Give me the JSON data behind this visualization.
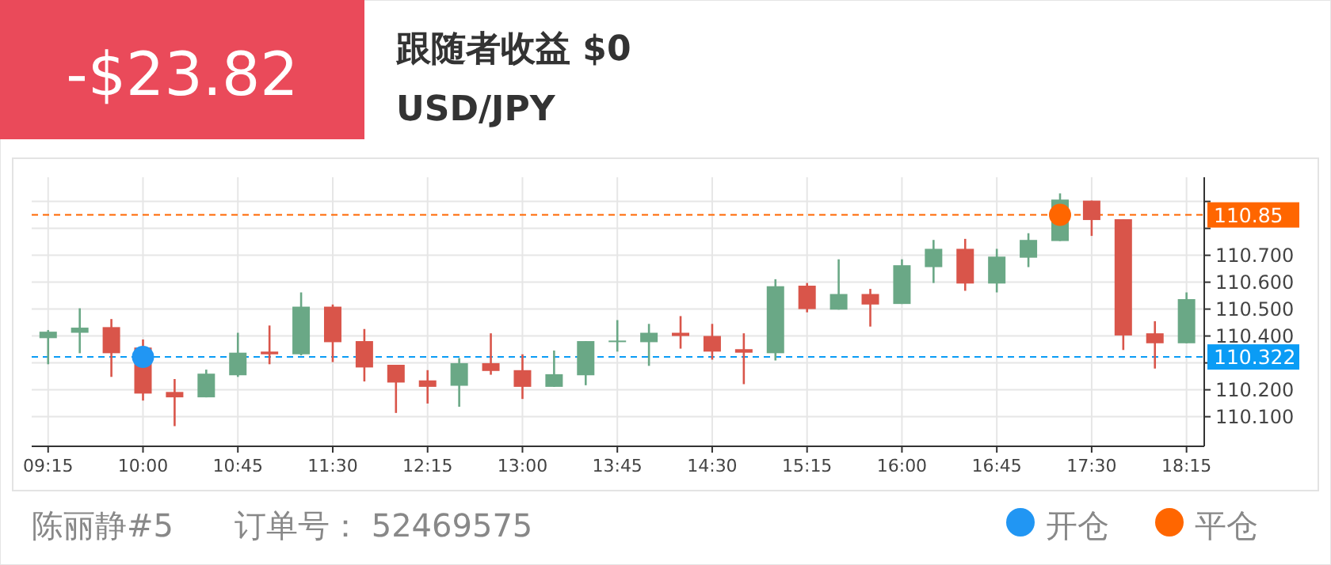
{
  "chart_data": {
    "type": "candlestick",
    "title": "USD/JPY",
    "annotations": [
      "-$23.82",
      "跟随者收益 $0",
      "陈丽静#5",
      "订单号： 52469575"
    ],
    "x": [
      9.25,
      9.5,
      9.75,
      10,
      10.25,
      10.5,
      10.75,
      11,
      11.25,
      11.5,
      11.75,
      12,
      12.25,
      12.5,
      12.75,
      13,
      13.25,
      13.5,
      13.75,
      14,
      14.25,
      14.5,
      14.75,
      15,
      15.25,
      15.5,
      15.75,
      16,
      16.25,
      16.5,
      16.75,
      17,
      17.25,
      17.5,
      17.75,
      18,
      18.25
    ],
    "ohlc": [
      [
        110.392,
        110.422,
        110.295,
        110.416
      ],
      [
        110.412,
        110.503,
        110.336,
        110.431
      ],
      [
        110.433,
        110.463,
        110.248,
        110.336
      ],
      [
        110.357,
        110.387,
        110.16,
        110.186
      ],
      [
        110.192,
        110.24,
        110.065,
        110.172
      ],
      [
        110.172,
        110.275,
        110.172,
        110.26
      ],
      [
        110.254,
        110.412,
        110.248,
        110.338
      ],
      [
        110.342,
        110.439,
        110.295,
        110.332
      ],
      [
        110.332,
        110.562,
        110.328,
        110.509
      ],
      [
        110.509,
        110.517,
        110.303,
        110.377
      ],
      [
        110.381,
        110.426,
        110.231,
        110.283
      ],
      [
        110.293,
        110.293,
        110.114,
        110.227
      ],
      [
        110.235,
        110.273,
        110.149,
        110.211
      ],
      [
        110.215,
        110.318,
        110.137,
        110.299
      ],
      [
        110.299,
        110.41,
        110.256,
        110.27
      ],
      [
        110.273,
        110.332,
        110.166,
        110.211
      ],
      [
        110.211,
        110.346,
        110.211,
        110.258
      ],
      [
        110.254,
        110.381,
        110.217,
        110.381
      ],
      [
        110.379,
        110.459,
        110.342,
        110.383
      ],
      [
        110.377,
        110.445,
        110.289,
        110.412
      ],
      [
        110.412,
        110.474,
        110.353,
        110.4
      ],
      [
        110.4,
        110.445,
        110.312,
        110.342
      ],
      [
        110.351,
        110.41,
        110.221,
        110.338
      ],
      [
        110.336,
        110.611,
        110.309,
        110.585
      ],
      [
        110.587,
        110.597,
        110.488,
        110.5
      ],
      [
        110.498,
        110.685,
        110.498,
        110.556
      ],
      [
        110.556,
        110.575,
        110.435,
        110.517
      ],
      [
        110.519,
        110.685,
        110.519,
        110.663
      ],
      [
        110.656,
        110.757,
        110.597,
        110.724
      ],
      [
        110.724,
        110.761,
        110.568,
        110.595
      ],
      [
        110.595,
        110.724,
        110.562,
        110.695
      ],
      [
        110.691,
        110.782,
        110.656,
        110.757
      ],
      [
        110.753,
        110.93,
        110.753,
        110.907
      ],
      [
        110.903,
        110.903,
        110.772,
        110.831
      ],
      [
        110.834,
        110.834,
        110.348,
        110.402
      ],
      [
        110.41,
        110.455,
        110.279,
        110.373
      ],
      [
        110.373,
        110.562,
        110.373,
        110.537
      ]
    ],
    "colors": [
      "#6aa886",
      "#6aa886",
      "#d9554a",
      "#d9554a",
      "#d9554a",
      "#6aa886",
      "#6aa886",
      "#d9554a",
      "#6aa886",
      "#d9554a",
      "#d9554a",
      "#d9554a",
      "#d9554a",
      "#6aa886",
      "#d9554a",
      "#d9554a",
      "#6aa886",
      "#6aa886",
      "#6aa886",
      "#6aa886",
      "#d9554a",
      "#d9554a",
      "#d9554a",
      "#6aa886",
      "#d9554a",
      "#6aa886",
      "#d9554a",
      "#6aa886",
      "#6aa886",
      "#d9554a",
      "#6aa886",
      "#6aa886",
      "#6aa886",
      "#d9554a",
      "#d9554a",
      "#d9554a",
      "#6aa886"
    ],
    "series": [
      {
        "name": "开仓",
        "type": "scatter",
        "color": "#2196f3",
        "x": [
          10
        ],
        "values": [
          110.322
        ]
      },
      {
        "name": "平仓",
        "type": "scatter",
        "color": "#ff6600",
        "x": [
          17.25
        ],
        "values": [
          110.85
        ]
      }
    ],
    "marker": "circle",
    "ref_lines": [
      {
        "axis": "y",
        "value": 110.85,
        "label": "110.85",
        "color": "#ff6600",
        "line_style": "dashed"
      },
      {
        "axis": "y",
        "value": 110.322,
        "label": "110.322",
        "color": "#0a9cf5",
        "line_style": "dashed"
      }
    ],
    "xlim": [
      9.12,
      18.39
    ],
    "ylim": [
      109.99,
      110.99
    ],
    "xticks": [
      {
        "value": 9.25,
        "label": "09:15"
      },
      {
        "value": 10,
        "label": "10:00"
      },
      {
        "value": 10.75,
        "label": "10:45"
      },
      {
        "value": 11.5,
        "label": "11:30"
      },
      {
        "value": 12.25,
        "label": "12:15"
      },
      {
        "value": 13,
        "label": "13:00"
      },
      {
        "value": 13.75,
        "label": "13:45"
      },
      {
        "value": 14.5,
        "label": "14:30"
      },
      {
        "value": 15.25,
        "label": "15:15"
      },
      {
        "value": 16,
        "label": "16:00"
      },
      {
        "value": 16.75,
        "label": "16:45"
      },
      {
        "value": 17.5,
        "label": "17:30"
      },
      {
        "value": 18.25,
        "label": "18:15"
      }
    ],
    "yticks": [
      {
        "value": 110.1,
        "label": "110.100"
      },
      {
        "value": 110.2,
        "label": "110.200"
      },
      {
        "value": 110.3,
        "label": null
      },
      {
        "value": 110.4,
        "label": "110.400"
      },
      {
        "value": 110.5,
        "label": "110.500"
      },
      {
        "value": 110.6,
        "label": "110.600"
      },
      {
        "value": 110.7,
        "label": "110.700"
      },
      {
        "value": 110.8,
        "label": null
      },
      {
        "value": 110.9,
        "label": null
      }
    ],
    "grid": true,
    "legend": "bottom right"
  }
}
